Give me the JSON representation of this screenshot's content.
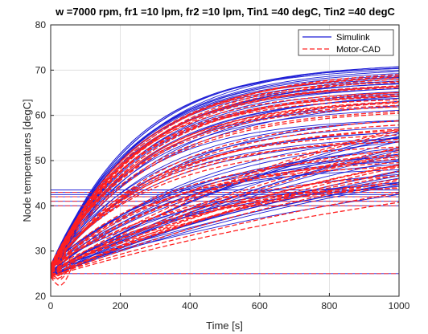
{
  "chart_data": {
    "type": "line",
    "title": "w =7000 rpm, fr1 =10 lpm, fr2 =10 lpm, Tin1 =40 degC, Tin2 =40 degC",
    "xlabel": "Time [s]",
    "ylabel": "Node temperatures [degC]",
    "xlim": [
      0,
      1000
    ],
    "ylim": [
      20,
      80
    ],
    "xticks": [
      "0",
      "200",
      "400",
      "600",
      "800",
      "1000"
    ],
    "yticks": [
      "20",
      "30",
      "40",
      "50",
      "60",
      "70",
      "80"
    ],
    "grid": true,
    "legend_position": "top-right",
    "colors": {
      "simulink": "#1f1fd6",
      "motorcad": "#ff2020"
    },
    "series": [
      {
        "name": "Simulink",
        "style": "solid",
        "bundles": [
          {
            "role": "fast-upper",
            "t0": 26,
            "final": [
              65,
              72
            ],
            "tau": [
              230,
              270
            ],
            "count": 22
          },
          {
            "role": "fast-mid",
            "t0": 26,
            "final": [
              55,
              66
            ],
            "tau": [
              250,
              330
            ],
            "count": 14
          },
          {
            "role": "mid-plateau",
            "t0": 26,
            "final": [
              46,
              58
            ],
            "tau": [
              300,
              480
            ],
            "count": 14
          },
          {
            "role": "slow-rising",
            "t0": 25,
            "final": [
              58,
              80
            ],
            "tau": [
              900,
              1500
            ],
            "count": 16
          },
          {
            "role": "flat-constant",
            "values": [
              40,
              41,
              42,
              42.5,
              43,
              43.5
            ]
          },
          {
            "role": "ambient",
            "values": [
              25
            ]
          }
        ]
      },
      {
        "name": "Motor-CAD",
        "style": "dashed",
        "bundles": [
          {
            "role": "fast-upper",
            "t0": 26,
            "final": [
              63,
              70
            ],
            "tau": [
              230,
              280
            ],
            "count": 18
          },
          {
            "role": "fast-mid",
            "t0": 26,
            "final": [
              54,
              64
            ],
            "tau": [
              260,
              340
            ],
            "count": 12
          },
          {
            "role": "mid-plateau",
            "t0": 26,
            "final": [
              45,
              56
            ],
            "tau": [
              300,
              500
            ],
            "count": 10
          },
          {
            "role": "slow-rising",
            "t0": 25,
            "final": [
              56,
              78
            ],
            "tau": [
              900,
              1500
            ],
            "count": 14
          },
          {
            "role": "flat-constant",
            "values": [
              40,
              41,
              42,
              43
            ]
          },
          {
            "role": "ambient",
            "values": [
              25
            ]
          }
        ]
      }
    ]
  }
}
